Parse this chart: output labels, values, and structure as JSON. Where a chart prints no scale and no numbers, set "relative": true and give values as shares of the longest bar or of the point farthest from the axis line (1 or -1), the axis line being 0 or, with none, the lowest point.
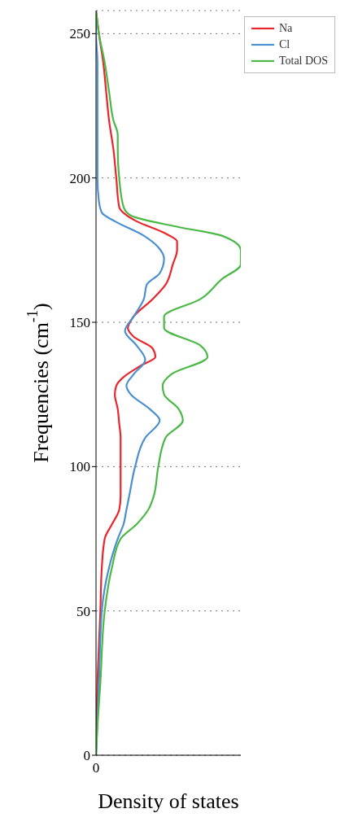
{
  "chart_data": {
    "type": "line",
    "orientation": "horizontal",
    "xlabel": "Density of states",
    "ylabel": "Frequencies (cm$^{-1}$)",
    "relative": true,
    "annotations": [
      "0"
    ],
    "ylim": [
      0,
      258
    ],
    "yticks": [
      0,
      50,
      100,
      150,
      200,
      250
    ],
    "grid": "y",
    "legend": "top right",
    "line_style": "solid",
    "series": [
      {
        "name": "Na",
        "color": "#e8262b",
        "values": [
          0,
          0.01,
          0.03,
          0.04,
          0.06,
          0.11,
          0.16,
          0.17,
          0.17,
          0.17,
          0.16,
          0.15,
          0.13,
          0.14,
          0.19,
          0.31,
          0.41,
          0.39,
          0.26,
          0.22,
          0.26,
          0.39,
          0.48,
          0.53,
          0.56,
          0.56,
          0.47,
          0.28,
          0.16,
          0.14,
          0.12,
          0.09,
          0.07,
          0.05,
          0.02,
          0
        ],
        "x": [
          0,
          25,
          50,
          65,
          75,
          80,
          85,
          90,
          100,
          110,
          115,
          120,
          125,
          128,
          131,
          135,
          138,
          141,
          145,
          148,
          152,
          158,
          163,
          170,
          175,
          178,
          181,
          185,
          190,
          200,
          210,
          220,
          230,
          240,
          250,
          258
        ]
      },
      {
        "name": "Cl",
        "color": "#4a8fd0",
        "values": [
          0,
          0.02,
          0.04,
          0.09,
          0.15,
          0.19,
          0.21,
          0.23,
          0.27,
          0.34,
          0.44,
          0.37,
          0.24,
          0.21,
          0.26,
          0.34,
          0.28,
          0.2,
          0.26,
          0.33,
          0.35,
          0.44,
          0.47,
          0.43,
          0.33,
          0.13,
          0.04,
          0.02,
          0.01,
          0.01,
          0.01,
          0,
          0
        ],
        "x": [
          0,
          25,
          50,
          65,
          75,
          80,
          85,
          90,
          100,
          110,
          116,
          120,
          125,
          128,
          132,
          137,
          142,
          147,
          152,
          158,
          163,
          167,
          172,
          176,
          180,
          185,
          188,
          192,
          200,
          220,
          240,
          250,
          258
        ]
      },
      {
        "name": "Total DOS",
        "color": "#4cb848",
        "values": [
          0,
          0.01,
          0.03,
          0.06,
          0.11,
          0.17,
          0.28,
          0.36,
          0.4,
          0.43,
          0.48,
          0.6,
          0.57,
          0.47,
          0.46,
          0.52,
          0.77,
          0.72,
          0.47,
          0.47,
          0.72,
          0.87,
          1,
          1,
          0.87,
          0.57,
          0.24,
          0.19,
          0.16,
          0.15,
          0.15,
          0.12,
          0.09,
          0.06,
          0.02,
          0
        ],
        "x": [
          0,
          10,
          25,
          50,
          65,
          75,
          80,
          85,
          90,
          100,
          110,
          116,
          120,
          125,
          128,
          132,
          138,
          142,
          148,
          152,
          158,
          165,
          170,
          175,
          180,
          183,
          187,
          190,
          200,
          210,
          215,
          220,
          230,
          240,
          250,
          258
        ]
      }
    ]
  }
}
